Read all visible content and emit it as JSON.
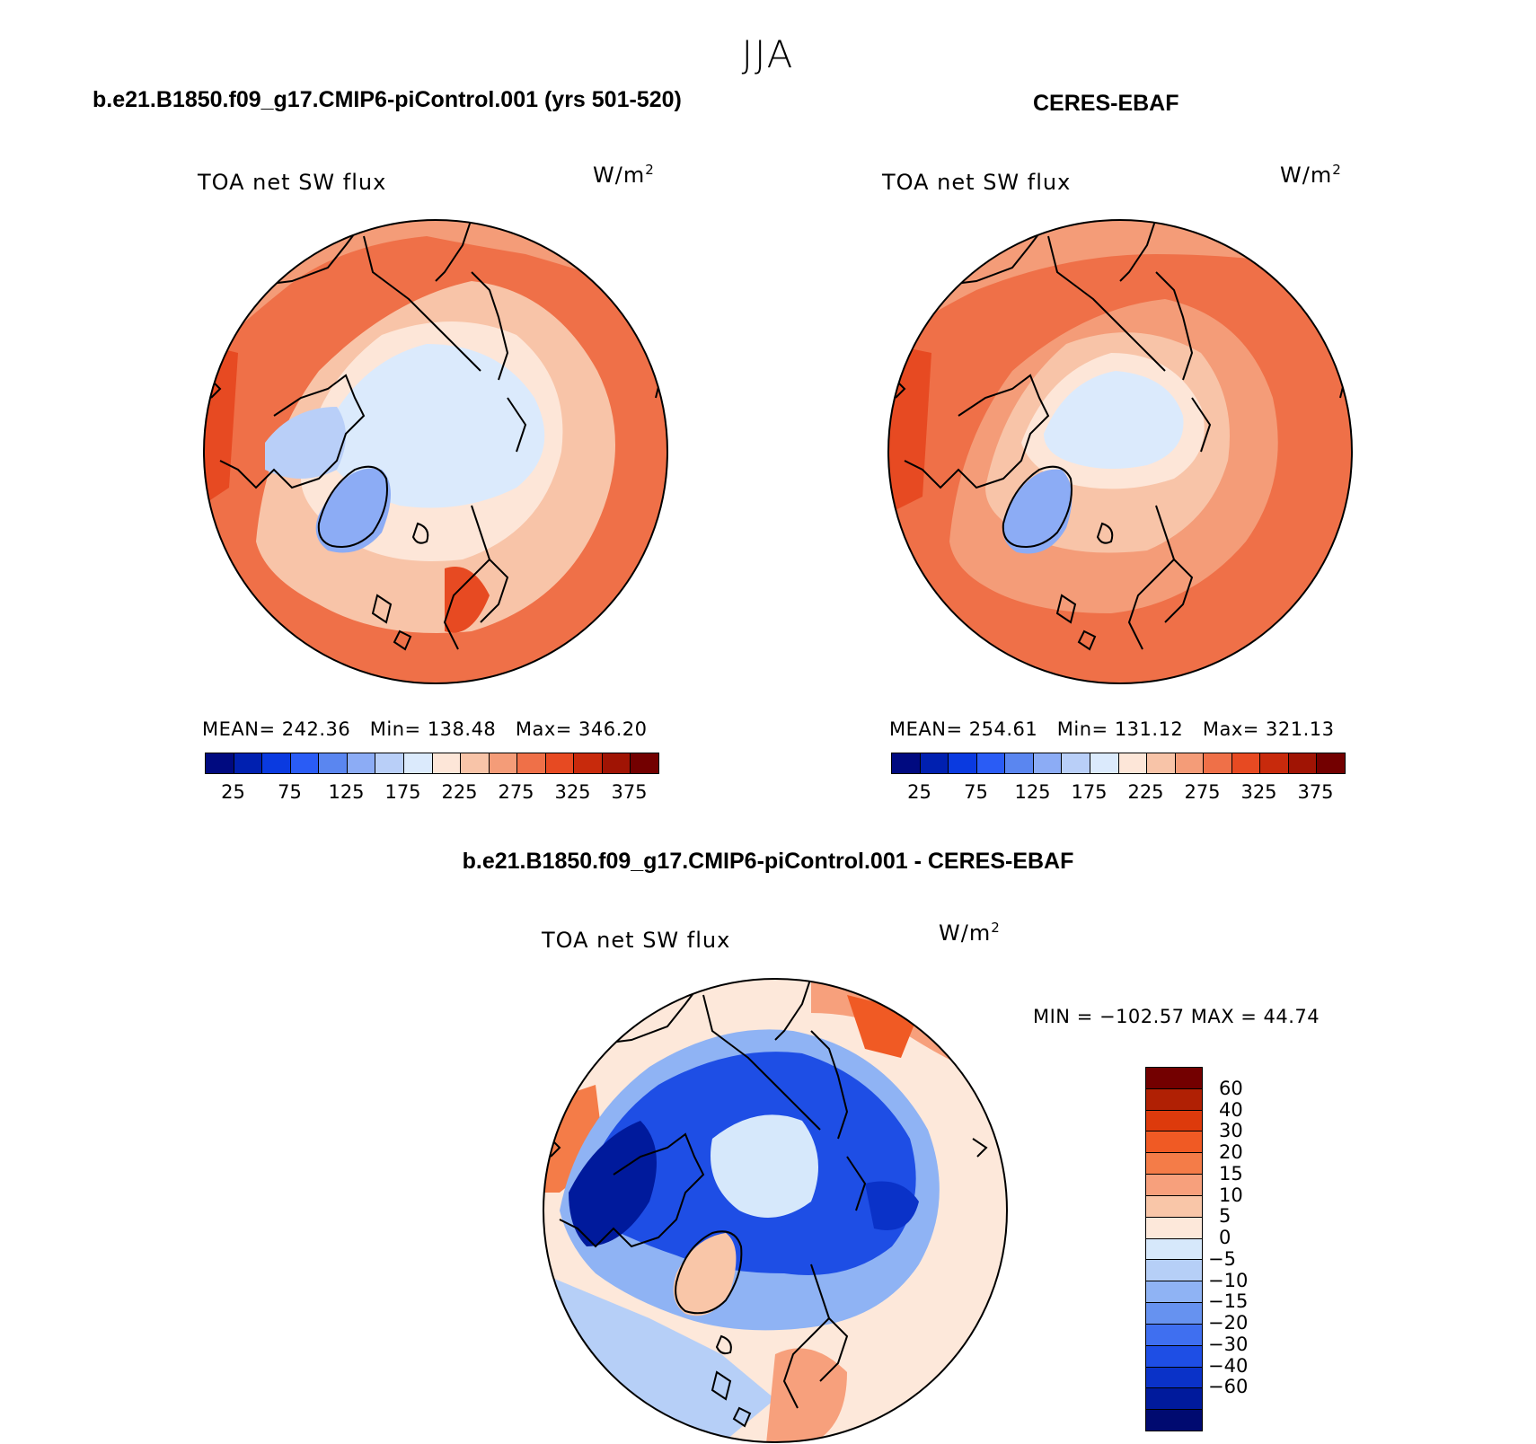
{
  "figure": {
    "season": "JJA",
    "variable": "TOA net SW flux",
    "units_base": "W/m",
    "units_exp": "2"
  },
  "panels": {
    "model": {
      "title": "b.e21.B1850.f09_g17.CMIP6-piControl.001 (yrs 501-520)",
      "mean_label": "MEAN=",
      "mean": "242.36",
      "min_label": "Min=",
      "min": "138.48",
      "max_label": "Max=",
      "max": "346.20"
    },
    "obs": {
      "title": "CERES-EBAF",
      "mean_label": "MEAN=",
      "mean": "254.61",
      "min_label": "Min=",
      "min": "131.12",
      "max_label": "Max=",
      "max": "321.13"
    },
    "diff": {
      "title": "b.e21.B1850.f09_g17.CMIP6-piControl.001 - CERES-EBAF",
      "minmax_text": "MIN = −102.57 MAX =   44.74"
    }
  },
  "colorbar_abs": {
    "colors": [
      "#000a80",
      "#0020b0",
      "#0a3ae0",
      "#2a5cf5",
      "#5a86f0",
      "#8cacf5",
      "#b9cff8",
      "#dbeafc",
      "#fde6d8",
      "#f8c4a8",
      "#f49c78",
      "#ef7048",
      "#e74a22",
      "#c82a0c",
      "#a01404",
      "#730000"
    ],
    "labels": [
      "25",
      "75",
      "125",
      "175",
      "225",
      "275",
      "325",
      "375"
    ]
  },
  "colorbar_diff": {
    "colors": [
      "#730000",
      "#b02004",
      "#dd3a0c",
      "#f05a24",
      "#f47c48",
      "#f7a07c",
      "#f9c6a8",
      "#fde8da",
      "#d6e8fb",
      "#b6cff7",
      "#8fb3f4",
      "#6692f0",
      "#3f6ff0",
      "#1e4ee5",
      "#0a32c8",
      "#001a9c",
      "#000a70"
    ],
    "labels": [
      "60",
      "40",
      "30",
      "20",
      "15",
      "10",
      "5",
      "0",
      "−5",
      "−10",
      "−15",
      "−20",
      "−30",
      "−40",
      "−60"
    ]
  },
  "chart_data": [
    {
      "type": "heatmap",
      "title": "b.e21.B1850.f09_g17.CMIP6-piControl.001 (yrs 501-520)",
      "variable": "TOA net SW flux",
      "units": "W/m2",
      "projection": "north polar stereographic",
      "levels": [
        25,
        50,
        75,
        100,
        125,
        150,
        175,
        200,
        225,
        250,
        275,
        300,
        325,
        350,
        375
      ],
      "stats": {
        "mean": 242.36,
        "min": 138.48,
        "max": 346.2
      }
    },
    {
      "type": "heatmap",
      "title": "CERES-EBAF",
      "variable": "TOA net SW flux",
      "units": "W/m2",
      "projection": "north polar stereographic",
      "levels": [
        25,
        50,
        75,
        100,
        125,
        150,
        175,
        200,
        225,
        250,
        275,
        300,
        325,
        350,
        375
      ],
      "stats": {
        "mean": 254.61,
        "min": 131.12,
        "max": 321.13
      }
    },
    {
      "type": "heatmap",
      "title": "b.e21.B1850.f09_g17.CMIP6-piControl.001 - CERES-EBAF",
      "variable": "TOA net SW flux",
      "units": "W/m2",
      "projection": "north polar stereographic",
      "levels": [
        -60,
        -40,
        -30,
        -20,
        -15,
        -10,
        -5,
        0,
        5,
        10,
        15,
        20,
        30,
        40,
        60
      ],
      "stats": {
        "min": -102.57,
        "max": 44.74
      }
    }
  ]
}
